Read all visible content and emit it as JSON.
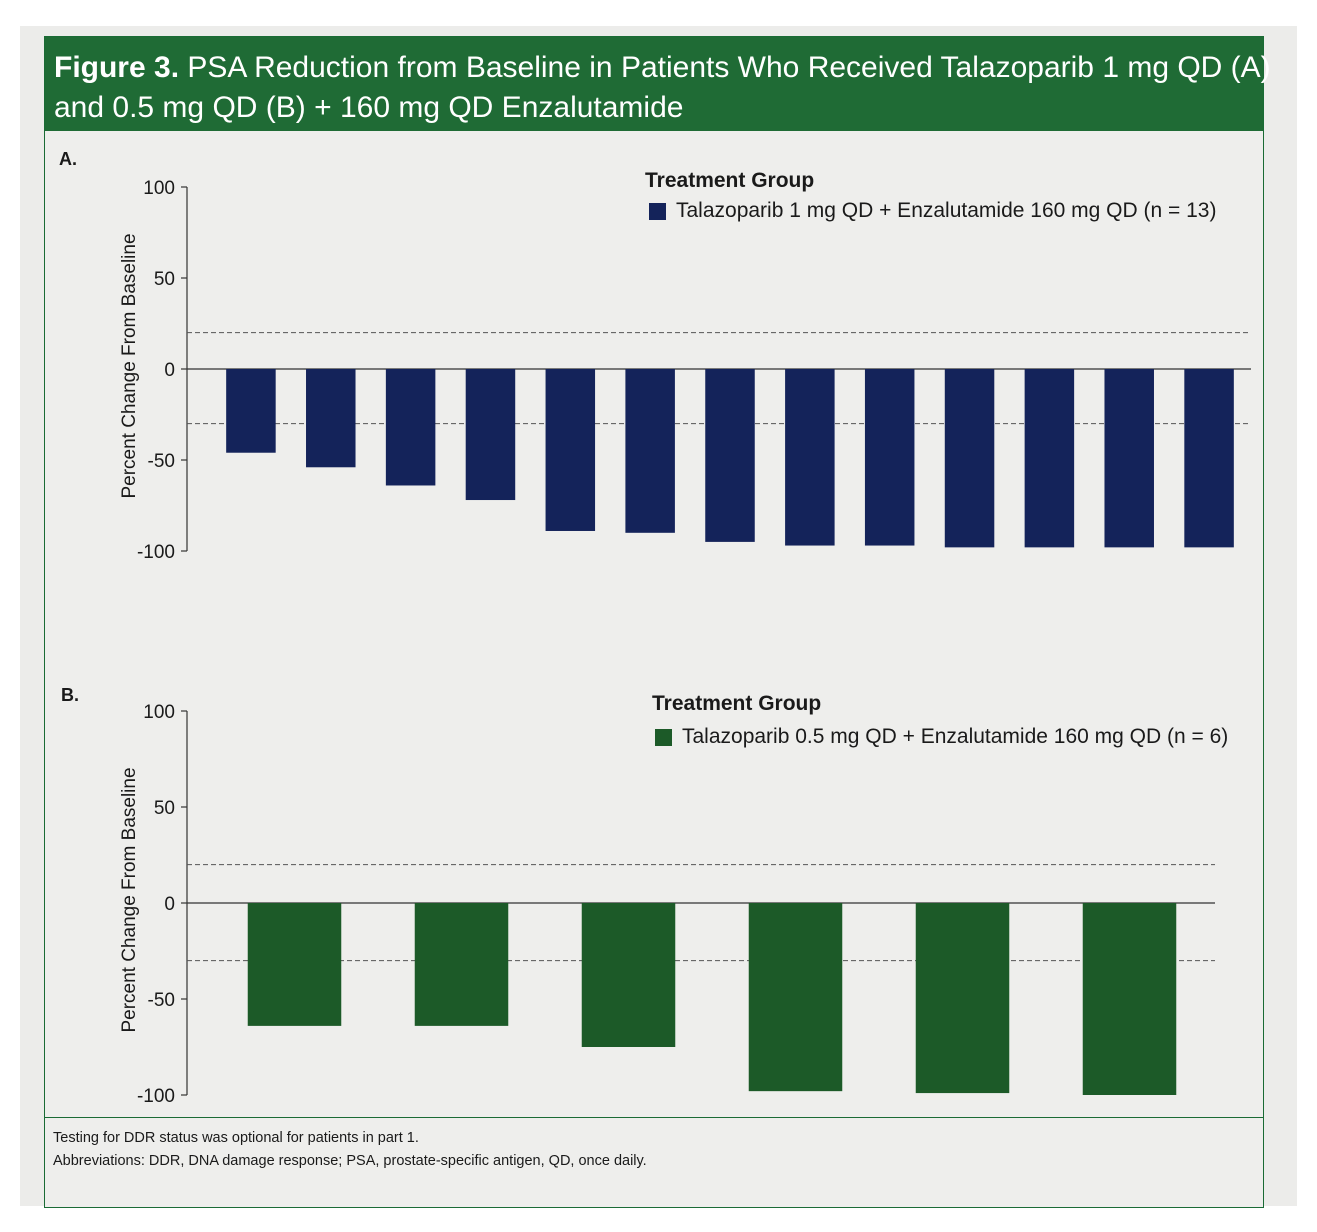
{
  "figure": {
    "title_bold": "Figure 3.",
    "title_line1": "PSA Reduction from Baseline in Patients Who Received Talazoparib 1 mg QD (A)",
    "title_line2": "and 0.5 mg QD (B) + 160 mg QD Enzalutamide"
  },
  "colors": {
    "banner": "#1f6b35",
    "series_a": "#14235a",
    "series_b": "#1c5a28"
  },
  "chart_data": [
    {
      "type": "bar",
      "panel_label": "A.",
      "ylabel": "Percent Change From Baseline",
      "ylim": [
        -100,
        100
      ],
      "yticks": [
        "100",
        "50",
        "0",
        "-50",
        "-100"
      ],
      "reference_lines": [
        20,
        -30
      ],
      "legend_title": "Treatment Group",
      "legend_placement": "top-right",
      "series": [
        {
          "name": "Talazoparib 1 mg QD + Enzalutamide 160 mg QD (n = 13)",
          "values": [
            -46,
            -54,
            -64,
            -72,
            -89,
            -90,
            -95,
            -97,
            -97,
            -98,
            -98,
            -98,
            -98
          ]
        }
      ]
    },
    {
      "type": "bar",
      "panel_label": "B.",
      "ylabel": "Percent Change From Baseline",
      "ylim": [
        -100,
        100
      ],
      "yticks": [
        "100",
        "50",
        "0",
        "-50",
        "-100"
      ],
      "reference_lines": [
        20,
        -30
      ],
      "legend_title": "Treatment Group",
      "legend_placement": "top-right",
      "series": [
        {
          "name": "Talazoparib 0.5 mg QD + Enzalutamide 160 mg QD (n = 6)",
          "values": [
            -64,
            -64,
            -75,
            -98,
            -99,
            -100
          ]
        }
      ]
    }
  ],
  "footnotes": {
    "line1": "Testing for DDR status was optional for patients in part 1.",
    "line2": "Abbreviations: DDR, DNA damage response; PSA, prostate-specific antigen, QD, once daily."
  }
}
